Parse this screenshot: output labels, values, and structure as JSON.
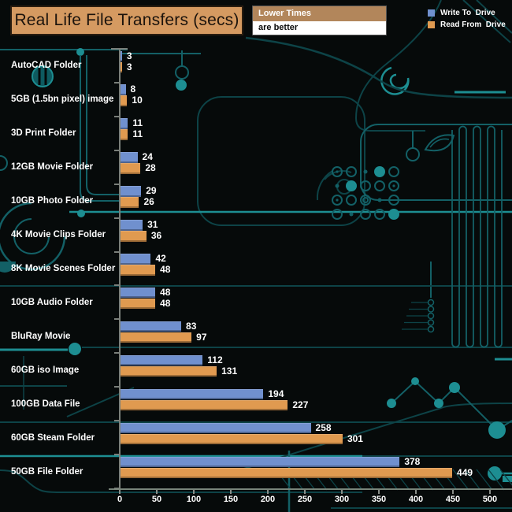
{
  "header": {
    "title": "Real Life File Transfers (secs)",
    "note_line1": "Lower Times",
    "note_line2": "are better"
  },
  "legend": [
    {
      "label": "Write To  Drive",
      "color": "#7090ce"
    },
    {
      "label": "Read From  Drive",
      "color": "#e09a50"
    }
  ],
  "chart_data": {
    "type": "bar",
    "orientation": "horizontal",
    "title": "Real Life File Transfers (secs)",
    "categories": [
      "AutoCAD Folder",
      "5GB (1.5bn pixel) image",
      "3D Print Folder",
      "12GB Movie Folder",
      "10GB Photo Folder",
      "4K Movie Clips Folder",
      "8K Movie Scenes Folder",
      "10GB Audio Folder",
      "BluRay Movie",
      "60GB iso Image",
      "100GB Data File",
      "60GB Steam Folder",
      "50GB File Folder"
    ],
    "series": [
      {
        "name": "Write To  Drive",
        "color": "#7090ce",
        "values": [
          3,
          8,
          11,
          24,
          29,
          31,
          42,
          48,
          83,
          112,
          194,
          258,
          378
        ]
      },
      {
        "name": "Read From  Drive",
        "color": "#e09a50",
        "values": [
          3,
          10,
          11,
          28,
          26,
          36,
          48,
          48,
          97,
          131,
          227,
          301,
          449
        ]
      }
    ],
    "xlabel": "",
    "ylabel": "",
    "xlim": [
      0,
      500
    ],
    "x_ticks": [
      0,
      50,
      100,
      150,
      200,
      250,
      300,
      350,
      400,
      450,
      500
    ],
    "value_labels": true,
    "grid": false,
    "legend_position": "top-right"
  },
  "colors": {
    "background": "#060a0a",
    "trace_dim": "#0d4347",
    "trace_mid": "#136066",
    "trace_bright": "#1d8e92",
    "axis": "#7a7f7a",
    "title_bg": "#d59a61",
    "title_text": "#1b130c",
    "note_top_bg": "#b2865b",
    "note_bottom_bg": "#ffffff",
    "value_text": "#ffffff"
  }
}
